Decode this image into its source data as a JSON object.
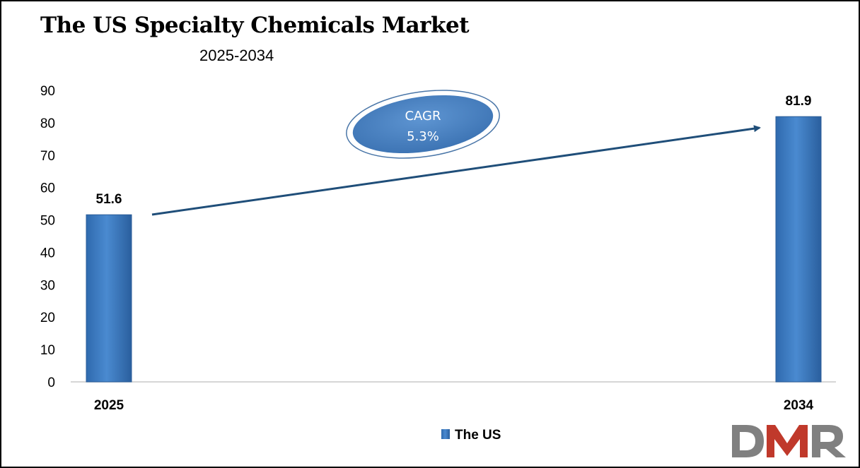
{
  "title": "The US Specialty Chemicals Market",
  "subtitle": "2025-2034",
  "cagr": {
    "label": "CAGR",
    "value": "5.3%"
  },
  "logo_text": "DMR",
  "colors": {
    "bar": "#3a78c0",
    "arrow": "#1f4e79",
    "ellipse": "#4f86c6",
    "logo_grey": "#808080",
    "logo_red": "#c0392b"
  },
  "chart_data": {
    "type": "bar",
    "title": "The US Specialty Chemicals Market",
    "subtitle": "2025-2034",
    "categories": [
      "2025",
      "2034"
    ],
    "series": [
      {
        "name": "The US",
        "values": [
          51.6,
          81.9
        ]
      }
    ],
    "data_labels": [
      "51.6",
      "81.9"
    ],
    "yticks": [
      "0",
      "10",
      "20",
      "30",
      "40",
      "50",
      "60",
      "70",
      "80",
      "90"
    ],
    "ylim": [
      0,
      90
    ],
    "grid": false,
    "legend_position": "bottom-center",
    "annotation": "CAGR 5.3%"
  }
}
